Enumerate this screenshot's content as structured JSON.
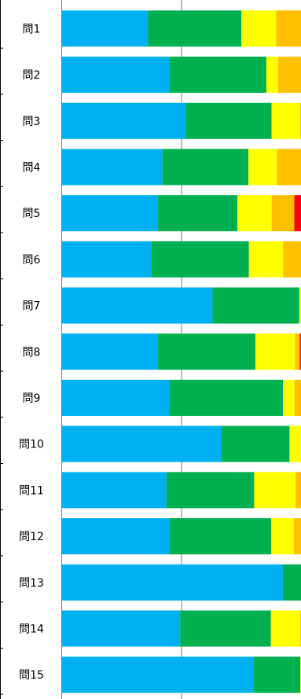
{
  "chart_data": {
    "type": "bar",
    "orientation": "horizontal",
    "stacked": true,
    "percent": true,
    "categories": [
      "問1",
      "問2",
      "問3",
      "問4",
      "問5",
      "問6",
      "問7",
      "問8",
      "問9",
      "問10",
      "問11",
      "問12",
      "問13",
      "問14",
      "問15"
    ],
    "series": [
      {
        "color": "#00b0f0",
        "values": [
          36.0,
          44.9,
          51.8,
          42.0,
          40.1,
          37.5,
          63.0,
          40.1,
          44.9,
          66.6,
          43.7,
          44.9,
          92.4,
          49.4,
          80.0
        ]
      },
      {
        "color": "#00b050",
        "values": [
          39.0,
          40.6,
          35.9,
          36.0,
          33.3,
          40.7,
          36.3,
          40.8,
          47.6,
          28.6,
          36.7,
          42.6,
          7.6,
          38.0,
          19.7
        ]
      },
      {
        "color": "#ffff00",
        "values": [
          14.6,
          4.9,
          11.9,
          11.9,
          14.3,
          14.3,
          0.7,
          16.6,
          4.8,
          4.8,
          17.3,
          9.5,
          0.0,
          12.3,
          0.3
        ]
      },
      {
        "color": "#ffc000",
        "values": [
          10.4,
          9.6,
          0.4,
          10.1,
          9.5,
          7.5,
          0.0,
          2.0,
          2.7,
          0.0,
          2.3,
          3.0,
          0.0,
          0.3,
          0.0
        ]
      },
      {
        "color": "#ff0000",
        "values": [
          0.0,
          0.0,
          0.0,
          0.0,
          2.8,
          0.0,
          0.0,
          0.5,
          0.0,
          0.0,
          0.0,
          0.0,
          0.0,
          0.0,
          0.0
        ]
      }
    ],
    "xlim": [
      0,
      100
    ],
    "gridline_at": 50,
    "legend": "none"
  }
}
